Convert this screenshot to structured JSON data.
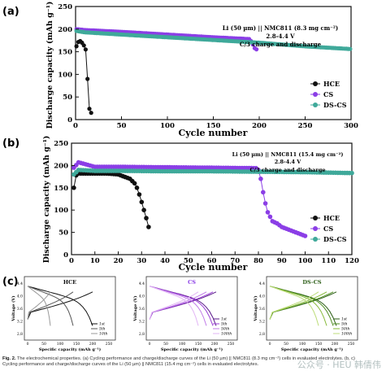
{
  "panels": {
    "a": {
      "letter": "(a)",
      "annot": [
        "Li (50 µm) || NMC811 (8.3 mg cm⁻²)",
        "2.8-4.4 V",
        "C/3 charge and discharge"
      ],
      "ylabel": "Discharge capacity (mAh g⁻¹)",
      "xlabel": "Cycle number",
      "xticks": [
        "0",
        "50",
        "100",
        "150",
        "200",
        "250",
        "300"
      ],
      "yticks": [
        "0",
        "50",
        "100",
        "150",
        "200",
        "250"
      ],
      "legend": [
        "HCE",
        "CS",
        "DS-CS"
      ]
    },
    "b": {
      "letter": "(b)",
      "annot": [
        "Li (50 µm) || NMC811 (15.4 mg cm⁻²)",
        "2.8-4.4 V",
        "C/3 charge and discharge"
      ],
      "ylabel": "Discharge capacity (mAh g⁻¹)",
      "xlabel": "Cycle number",
      "xticks": [
        "0",
        "10",
        "20",
        "30",
        "40",
        "50",
        "60",
        "70",
        "80",
        "90",
        "100",
        "110",
        "120"
      ],
      "yticks": [
        "0",
        "50",
        "100",
        "150",
        "200",
        "250"
      ],
      "legend": [
        "HCE",
        "CS",
        "DS-CS"
      ]
    },
    "c": {
      "letter": "(c)",
      "subplots": [
        {
          "title": "HCE",
          "ylabel": "Voltage (V)",
          "xlabel": "Specific capacity (mAh g⁻¹)",
          "xticks": [
            "0",
            "50",
            "100",
            "150",
            "200",
            "250"
          ],
          "yticks": [
            "2.8",
            "3.2",
            "3.6",
            "4.0",
            "4.4"
          ],
          "legend": [
            "1st",
            "5th",
            "10th"
          ]
        },
        {
          "title": "CS",
          "ylabel": "Voltage (V)",
          "xlabel": "Specific capacity (mAh g⁻¹)",
          "xticks": [
            "0",
            "50",
            "100",
            "150",
            "200",
            "250"
          ],
          "yticks": [
            "2.8",
            "3.2",
            "3.6",
            "4.0",
            "4.4"
          ],
          "legend": [
            "1st",
            "5th",
            "50th",
            "100th"
          ]
        },
        {
          "title": "DS-CS",
          "ylabel": "Voltage (V)",
          "xlabel": "Specific capacity (mAh g⁻¹)",
          "xticks": [
            "0",
            "50",
            "100",
            "150",
            "200",
            "250"
          ],
          "yticks": [
            "2.8",
            "3.2",
            "3.6",
            "4.0",
            "4.4"
          ],
          "legend": [
            "1st",
            "5th",
            "50th",
            "100th"
          ]
        }
      ]
    }
  },
  "colors": {
    "HCE": "#111111",
    "CS": "#8b3ee6",
    "DSCS": "#3fa99a",
    "c1": [
      "#111111",
      "#555555",
      "#999999"
    ],
    "c2": [
      "#5a1a8a",
      "#9b3fd6",
      "#c07be8",
      "#e2b5f5"
    ],
    "c3": [
      "#2b5d16",
      "#4f8d22",
      "#86b93a",
      "#bcdc78"
    ]
  },
  "caption": {
    "bold": "Fig. 2.",
    "line1": " The electrochemical properties. (a) Cycling performance and charge/discharge curves of the Li (50 µm) || NMC811 (8.3 mg cm⁻²) cells in evaluated electrolytes. (b, c)",
    "line2": "Cycling performance and charge/discharge curves of the Li (50 µm) || NMC811 (15.4 mg cm⁻²) cells in evaluated electrolytes."
  },
  "watermark": "公众号 · HEU 韩倩伟",
  "chart_data": [
    {
      "type": "scatter",
      "title": "",
      "xlabel": "Cycle number",
      "ylabel": "Discharge capacity (mAh g⁻¹)",
      "xlim": [
        0,
        300
      ],
      "ylim": [
        0,
        250
      ],
      "series": [
        {
          "name": "HCE",
          "x": [
            1,
            2,
            4,
            6,
            8,
            10,
            12,
            14,
            16,
            18
          ],
          "y": [
            162,
            168,
            175,
            172,
            168,
            160,
            150,
            30,
            18,
            12
          ]
        },
        {
          "name": "CS",
          "x": [
            1,
            10,
            50,
            100,
            150,
            190,
            195,
            198
          ],
          "y": [
            200,
            198,
            194,
            188,
            182,
            178,
            158,
            154
          ]
        },
        {
          "name": "DS-CS",
          "x": [
            1,
            10,
            50,
            100,
            150,
            200,
            250,
            300
          ],
          "y": [
            196,
            193,
            188,
            182,
            176,
            170,
            162,
            156
          ]
        }
      ]
    },
    {
      "type": "scatter",
      "title": "",
      "xlabel": "Cycle number",
      "ylabel": "Discharge capacity (mAh g⁻¹)",
      "xlim": [
        0,
        120
      ],
      "ylim": [
        0,
        250
      ],
      "series": [
        {
          "name": "HCE",
          "x": [
            1,
            2,
            3,
            5,
            10,
            15,
            20,
            25,
            27,
            28,
            29,
            30,
            31,
            32,
            33
          ],
          "y": [
            150,
            178,
            182,
            182,
            182,
            182,
            180,
            170,
            160,
            150,
            135,
            118,
            100,
            82,
            62
          ]
        },
        {
          "name": "CS",
          "x": [
            1,
            3,
            10,
            20,
            40,
            60,
            79,
            80,
            81,
            82,
            83,
            84,
            85,
            86,
            88,
            90,
            95,
            100
          ],
          "y": [
            195,
            207,
            197,
            197,
            196,
            195,
            194,
            190,
            170,
            140,
            115,
            95,
            85,
            75,
            70,
            62,
            52,
            42
          ]
        },
        {
          "name": "DS-CS",
          "x": [
            1,
            3,
            10,
            20,
            40,
            60,
            80,
            100,
            120
          ],
          "y": [
            180,
            190,
            188,
            188,
            187,
            187,
            186,
            185,
            183
          ]
        }
      ]
    }
  ]
}
